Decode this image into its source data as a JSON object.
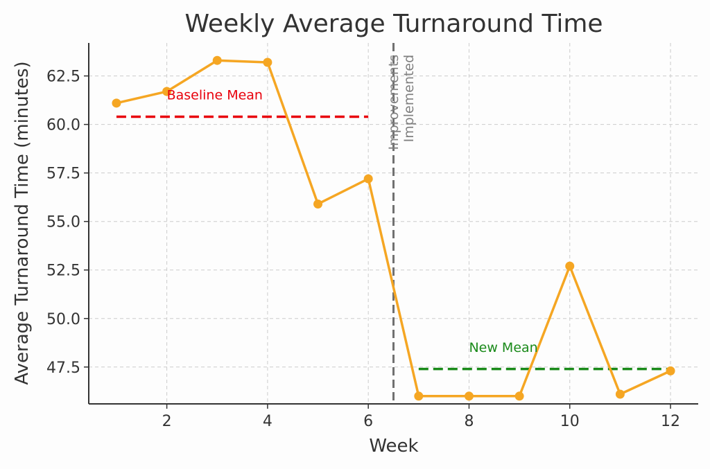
{
  "chart_data": {
    "type": "line",
    "title": "Weekly Average Turnaround Time",
    "xlabel": "Week",
    "ylabel": "Average Turnaround Time (minutes)",
    "xlim": [
      0.45,
      12.55
    ],
    "ylim": [
      45.6,
      64.2
    ],
    "x_ticks": [
      2,
      4,
      6,
      8,
      10,
      12
    ],
    "y_ticks": [
      47.5,
      50.0,
      52.5,
      55.0,
      57.5,
      60.0,
      62.5
    ],
    "grid": true,
    "series": [
      {
        "x": [
          1,
          2,
          3,
          4,
          5,
          6,
          7,
          8,
          9,
          10,
          11,
          12
        ],
        "values": [
          61.1,
          61.7,
          63.3,
          63.2,
          55.9,
          57.2,
          46.0,
          46.0,
          46.0,
          52.7,
          46.1,
          47.3
        ],
        "color": "#f5a623"
      }
    ],
    "reference_lines": [
      {
        "type": "horizontal",
        "label": "Baseline Mean",
        "y": 60.4,
        "x_range": [
          1,
          6
        ],
        "color": "#e8000b",
        "style": "dashed"
      },
      {
        "type": "horizontal",
        "label": "New Mean",
        "y": 47.4,
        "x_range": [
          7,
          12
        ],
        "color": "#1a8a1a",
        "style": "dashed"
      },
      {
        "type": "vertical",
        "label": "Improvements Implemented",
        "x": 6.5,
        "color": "#707070",
        "style": "dashed"
      }
    ],
    "annotations": [
      {
        "text": "Baseline Mean",
        "x": 2.0,
        "y": 61.5,
        "color": "#e8000b"
      },
      {
        "text": "New Mean",
        "x": 8.0,
        "y": 48.5,
        "color": "#1a8a1a"
      },
      {
        "text_lines": [
          "Improvements",
          "Implemented"
        ],
        "x": 6.7,
        "y": 63.6,
        "color": "#808080"
      }
    ]
  }
}
